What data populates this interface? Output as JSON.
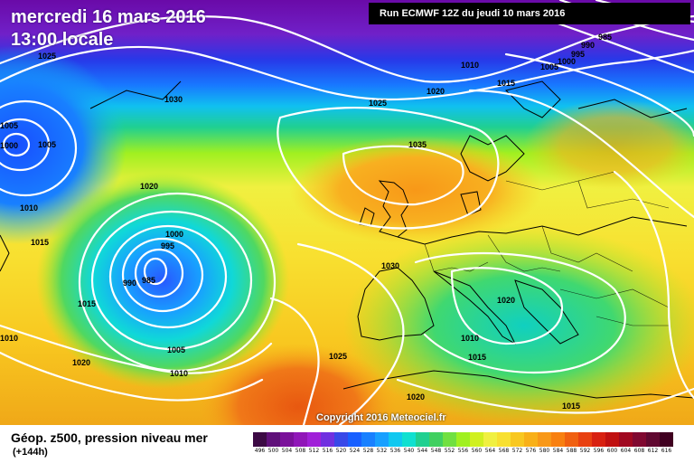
{
  "header": {
    "date": "mercredi 16 mars 2016",
    "time": "13:00 locale",
    "run": "Run ECMWF 12Z du jeudi 10 mars 2016"
  },
  "map": {
    "copyright": "Copyright 2016 Meteociel.fr",
    "isobar_labels": [
      "1025",
      "1030",
      "1005",
      "1000",
      "1005",
      "1010",
      "1020",
      "1015",
      "1000",
      "995",
      "990",
      "985",
      "1015",
      "1010",
      "1020",
      "1005",
      "1010",
      "1025",
      "1020",
      "1035",
      "1030",
      "1020",
      "1010",
      "1015",
      "1025",
      "1020",
      "1015",
      "1010",
      "1015",
      "985",
      "990",
      "995",
      "1000",
      "1005"
    ],
    "colors": {
      "cold": "#6a0aa8",
      "mid": "#22c866",
      "warm": "#f0a800"
    }
  },
  "footer": {
    "caption": "Géop. z500, pression niveau mer",
    "horizon": "(+144h)"
  },
  "legend": {
    "labels": [
      "496",
      "500",
      "504",
      "508",
      "512",
      "516",
      "520",
      "524",
      "528",
      "532",
      "536",
      "540",
      "544",
      "548",
      "552",
      "556",
      "560",
      "564",
      "568",
      "572",
      "576",
      "580",
      "584",
      "588",
      "592",
      "596",
      "600",
      "604",
      "608",
      "612",
      "616"
    ],
    "colors": [
      "#3c0a44",
      "#60107a",
      "#7a109a",
      "#9016b8",
      "#a020d8",
      "#7030e0",
      "#3848e8",
      "#1860ff",
      "#1880ff",
      "#18a0ff",
      "#10c8f0",
      "#10e0d0",
      "#20d090",
      "#40d060",
      "#70e040",
      "#a0f020",
      "#d0f020",
      "#f0f040",
      "#f8e030",
      "#f8c820",
      "#f8b018",
      "#f89818",
      "#f88010",
      "#f06010",
      "#e84010",
      "#d82010",
      "#c01010",
      "#a00820",
      "#800830",
      "#600830",
      "#400020"
    ]
  }
}
